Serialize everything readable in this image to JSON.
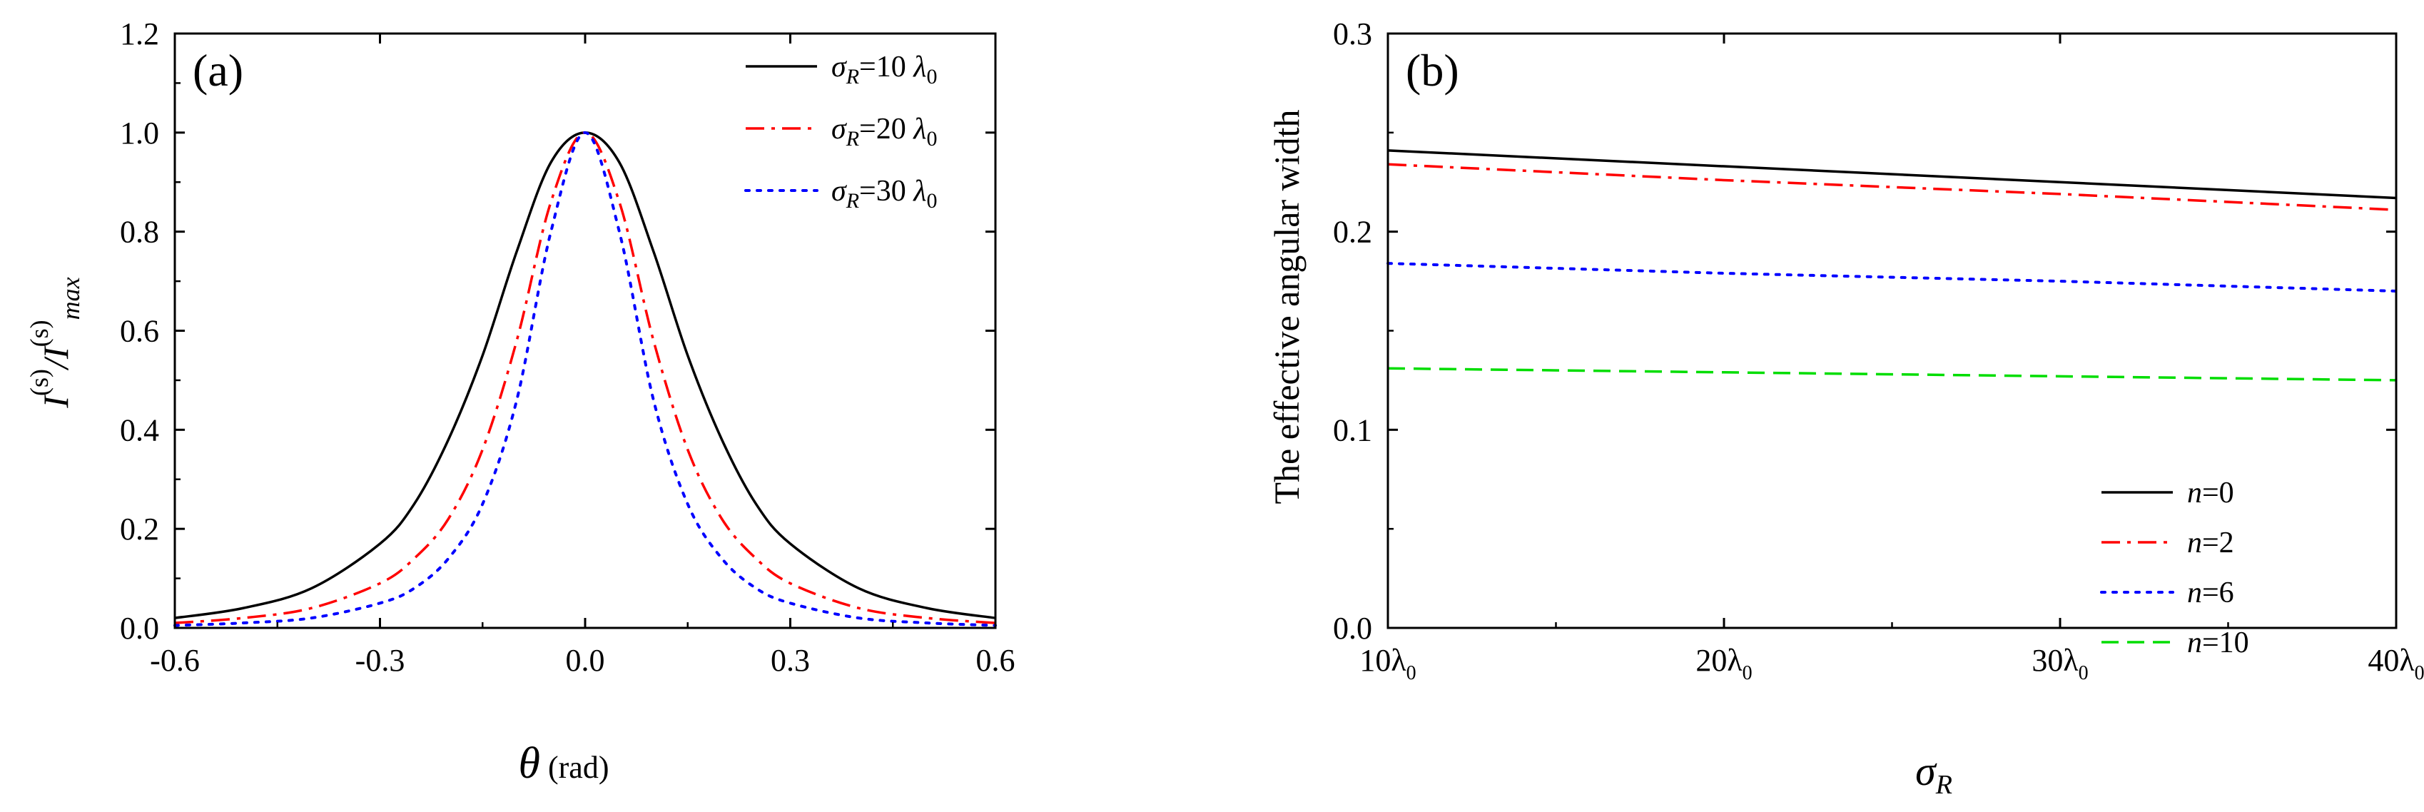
{
  "chart_data": [
    {
      "panel": "(a)",
      "type": "line",
      "title": "",
      "xlabel": "θ (rad)",
      "ylabel": "I(s)/I(s)max",
      "xlim": [
        -0.6,
        0.6
      ],
      "ylim": [
        0.0,
        1.2
      ],
      "xticks": [
        -0.6,
        -0.3,
        0.0,
        0.3,
        0.6
      ],
      "xtick_labels": [
        "-0.6",
        "-0.3",
        "0.0",
        "0.3",
        "0.6"
      ],
      "yticks": [
        0.0,
        0.2,
        0.4,
        0.6,
        0.8,
        1.0,
        1.2
      ],
      "ytick_labels": [
        "0.0",
        "0.2",
        "0.4",
        "0.6",
        "0.8",
        "1.0",
        "1.2"
      ],
      "legend_position": "top-right",
      "series": [
        {
          "name": "σR=10 λ0",
          "symbol": "σ",
          "sub": "R",
          "value_text": "=10 λ",
          "sub2": "0",
          "color": "#000000",
          "dash": "solid",
          "x": [
            -0.6,
            -0.5,
            -0.4,
            -0.3,
            -0.25,
            -0.2,
            -0.15,
            -0.1,
            -0.05,
            0.0,
            0.05,
            0.1,
            0.15,
            0.2,
            0.25,
            0.3,
            0.4,
            0.5,
            0.6
          ],
          "y": [
            0.02,
            0.04,
            0.08,
            0.17,
            0.25,
            0.38,
            0.55,
            0.76,
            0.94,
            1.0,
            0.94,
            0.76,
            0.55,
            0.38,
            0.25,
            0.17,
            0.08,
            0.04,
            0.02
          ]
        },
        {
          "name": "σR=20 λ0",
          "symbol": "σ",
          "sub": "R",
          "value_text": "=20 λ",
          "sub2": "0",
          "color": "#ff0000",
          "dash": "dashdot",
          "x": [
            -0.6,
            -0.5,
            -0.4,
            -0.3,
            -0.25,
            -0.2,
            -0.15,
            -0.1,
            -0.05,
            0.0,
            0.05,
            0.1,
            0.15,
            0.2,
            0.25,
            0.3,
            0.4,
            0.5,
            0.6
          ],
          "y": [
            0.01,
            0.02,
            0.04,
            0.09,
            0.14,
            0.22,
            0.36,
            0.58,
            0.86,
            1.0,
            0.86,
            0.58,
            0.36,
            0.22,
            0.14,
            0.09,
            0.04,
            0.02,
            0.01
          ]
        },
        {
          "name": "σR=30 λ0",
          "symbol": "σ",
          "sub": "R",
          "value_text": "=30 λ",
          "sub2": "0",
          "color": "#0000ff",
          "dash": "dot",
          "x": [
            -0.6,
            -0.5,
            -0.4,
            -0.3,
            -0.25,
            -0.2,
            -0.15,
            -0.1,
            -0.05,
            0.0,
            0.05,
            0.1,
            0.15,
            0.2,
            0.25,
            0.3,
            0.4,
            0.5,
            0.6
          ],
          "y": [
            0.005,
            0.01,
            0.02,
            0.05,
            0.08,
            0.14,
            0.25,
            0.46,
            0.8,
            1.0,
            0.8,
            0.46,
            0.25,
            0.14,
            0.08,
            0.05,
            0.02,
            0.01,
            0.005
          ]
        }
      ]
    },
    {
      "panel": "(b)",
      "type": "line",
      "title": "",
      "xlabel": "σR",
      "ylabel": "The effective angular width",
      "xlim": [
        10,
        40
      ],
      "ylim": [
        0.0,
        0.3
      ],
      "xticks": [
        10,
        20,
        30,
        40
      ],
      "xtick_labels": [
        "10λ0",
        "20λ0",
        "30λ0",
        "40λ0"
      ],
      "xtick_parts": [
        [
          "10λ",
          "0"
        ],
        [
          "20λ",
          "0"
        ],
        [
          "30λ",
          "0"
        ],
        [
          "40λ",
          "0"
        ]
      ],
      "yticks": [
        0.0,
        0.1,
        0.2,
        0.3
      ],
      "ytick_labels": [
        "0.0",
        "0.1",
        "0.2",
        "0.3"
      ],
      "legend_position": "bottom-right",
      "series": [
        {
          "name": "n=0",
          "symbol": "n",
          "value_text": "=0",
          "color": "#000000",
          "dash": "solid",
          "x": [
            10,
            20,
            30,
            40
          ],
          "y": [
            0.241,
            0.233,
            0.225,
            0.217
          ]
        },
        {
          "name": "n=2",
          "symbol": "n",
          "value_text": "=2",
          "color": "#ff0000",
          "dash": "dashdot",
          "x": [
            10,
            20,
            30,
            40
          ],
          "y": [
            0.234,
            0.226,
            0.219,
            0.211
          ]
        },
        {
          "name": "n=6",
          "symbol": "n",
          "value_text": "=6",
          "color": "#0000ff",
          "dash": "dot",
          "x": [
            10,
            20,
            30,
            40
          ],
          "y": [
            0.184,
            0.179,
            0.175,
            0.17
          ]
        },
        {
          "name": "n=10",
          "symbol": "n",
          "value_text": "=10",
          "color": "#00dd00",
          "dash": "dash",
          "x": [
            10,
            20,
            30,
            40
          ],
          "y": [
            0.131,
            0.129,
            0.127,
            0.125
          ]
        }
      ]
    }
  ]
}
